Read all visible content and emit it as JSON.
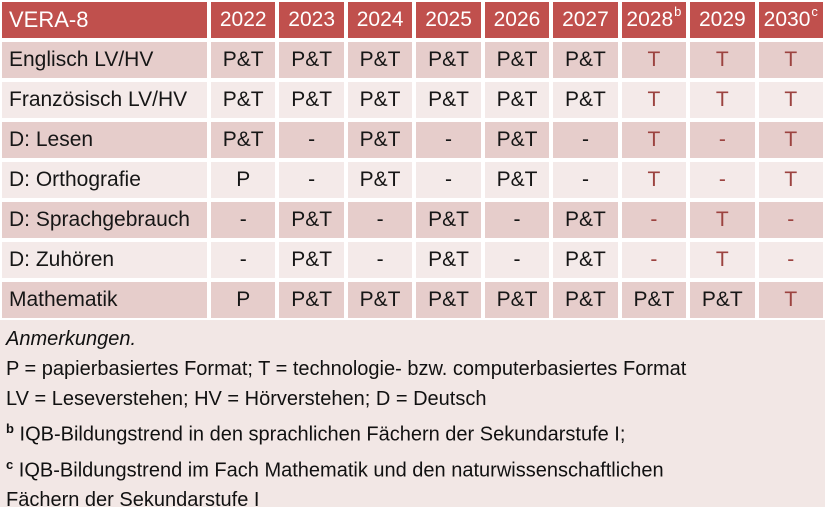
{
  "colors": {
    "header_bg": "#C0504D",
    "header_text": "#FFFFFF",
    "band_dark": "#E6CDCB",
    "band_light": "#F4EAE9",
    "notes_bg": "#F2E7E5",
    "red_text": "#9C4340",
    "black_text": "#161616"
  },
  "table": {
    "title": "VERA-8",
    "header": [
      {
        "text": "2022",
        "sup": ""
      },
      {
        "text": "2023",
        "sup": ""
      },
      {
        "text": "2024",
        "sup": ""
      },
      {
        "text": "2025",
        "sup": ""
      },
      {
        "text": "2026",
        "sup": ""
      },
      {
        "text": "2027",
        "sup": ""
      },
      {
        "text": "2028",
        "sup": "b"
      },
      {
        "text": "2029",
        "sup": ""
      },
      {
        "text": "2030",
        "sup": "c"
      }
    ],
    "rows": [
      {
        "label": "Englisch LV/HV",
        "cells": [
          {
            "t": "P&T",
            "red": false
          },
          {
            "t": "P&T",
            "red": false
          },
          {
            "t": "P&T",
            "red": false
          },
          {
            "t": "P&T",
            "red": false
          },
          {
            "t": "P&T",
            "red": false
          },
          {
            "t": "P&T",
            "red": false
          },
          {
            "t": "T",
            "red": true
          },
          {
            "t": "T",
            "red": true
          },
          {
            "t": "T",
            "red": true
          }
        ]
      },
      {
        "label": "Französisch LV/HV",
        "cells": [
          {
            "t": "P&T",
            "red": false
          },
          {
            "t": "P&T",
            "red": false
          },
          {
            "t": "P&T",
            "red": false
          },
          {
            "t": "P&T",
            "red": false
          },
          {
            "t": "P&T",
            "red": false
          },
          {
            "t": "P&T",
            "red": false
          },
          {
            "t": "T",
            "red": true
          },
          {
            "t": "T",
            "red": true
          },
          {
            "t": "T",
            "red": true
          }
        ]
      },
      {
        "label": "D: Lesen",
        "cells": [
          {
            "t": "P&T",
            "red": false
          },
          {
            "t": "-",
            "red": false
          },
          {
            "t": "P&T",
            "red": false
          },
          {
            "t": "-",
            "red": false
          },
          {
            "t": "P&T",
            "red": false
          },
          {
            "t": "-",
            "red": false
          },
          {
            "t": "T",
            "red": true
          },
          {
            "t": "-",
            "red": true
          },
          {
            "t": "T",
            "red": true
          }
        ]
      },
      {
        "label": "D: Orthografie",
        "cells": [
          {
            "t": "P",
            "red": false
          },
          {
            "t": "-",
            "red": false
          },
          {
            "t": "P&T",
            "red": false
          },
          {
            "t": "-",
            "red": false
          },
          {
            "t": "P&T",
            "red": false
          },
          {
            "t": "-",
            "red": false
          },
          {
            "t": "T",
            "red": true
          },
          {
            "t": "-",
            "red": true
          },
          {
            "t": "T",
            "red": true
          }
        ]
      },
      {
        "label": "D: Sprachgebrauch",
        "cells": [
          {
            "t": "-",
            "red": false
          },
          {
            "t": "P&T",
            "red": false
          },
          {
            "t": "-",
            "red": false
          },
          {
            "t": "P&T",
            "red": false
          },
          {
            "t": "-",
            "red": false
          },
          {
            "t": "P&T",
            "red": false
          },
          {
            "t": "-",
            "red": true
          },
          {
            "t": "T",
            "red": true
          },
          {
            "t": "-",
            "red": true
          }
        ]
      },
      {
        "label": "D: Zuhören",
        "cells": [
          {
            "t": "-",
            "red": false
          },
          {
            "t": "P&T",
            "red": false
          },
          {
            "t": "-",
            "red": false
          },
          {
            "t": "P&T",
            "red": false
          },
          {
            "t": "-",
            "red": false
          },
          {
            "t": "P&T",
            "red": false
          },
          {
            "t": "-",
            "red": true
          },
          {
            "t": "T",
            "red": true
          },
          {
            "t": "-",
            "red": true
          }
        ]
      },
      {
        "label": "Mathematik",
        "cells": [
          {
            "t": "P",
            "red": false
          },
          {
            "t": "P&T",
            "red": false
          },
          {
            "t": "P&T",
            "red": false
          },
          {
            "t": "P&T",
            "red": false
          },
          {
            "t": "P&T",
            "red": false
          },
          {
            "t": "P&T",
            "red": false
          },
          {
            "t": "P&T",
            "red": false
          },
          {
            "t": "P&T",
            "red": false
          },
          {
            "t": "T",
            "red": true
          }
        ]
      }
    ]
  },
  "notes": [
    {
      "sup": "",
      "italic": true,
      "text": "Anmerkungen."
    },
    {
      "sup": "",
      "italic": false,
      "text": "P = papierbasiertes Format; T = technologie- bzw. computerbasiertes Format"
    },
    {
      "sup": "",
      "italic": false,
      "text": "LV = Leseverstehen; HV = Hörverstehen; D = Deutsch"
    },
    {
      "sup": "b",
      "italic": false,
      "text": "IQB-Bildungstrend in den sprachlichen Fächern der Sekundarstufe I;"
    },
    {
      "sup": "c",
      "italic": false,
      "text": "IQB-Bildungstrend im Fach Mathematik und den naturwissenschaftlichen\nFächern der Sekundarstufe I"
    }
  ]
}
